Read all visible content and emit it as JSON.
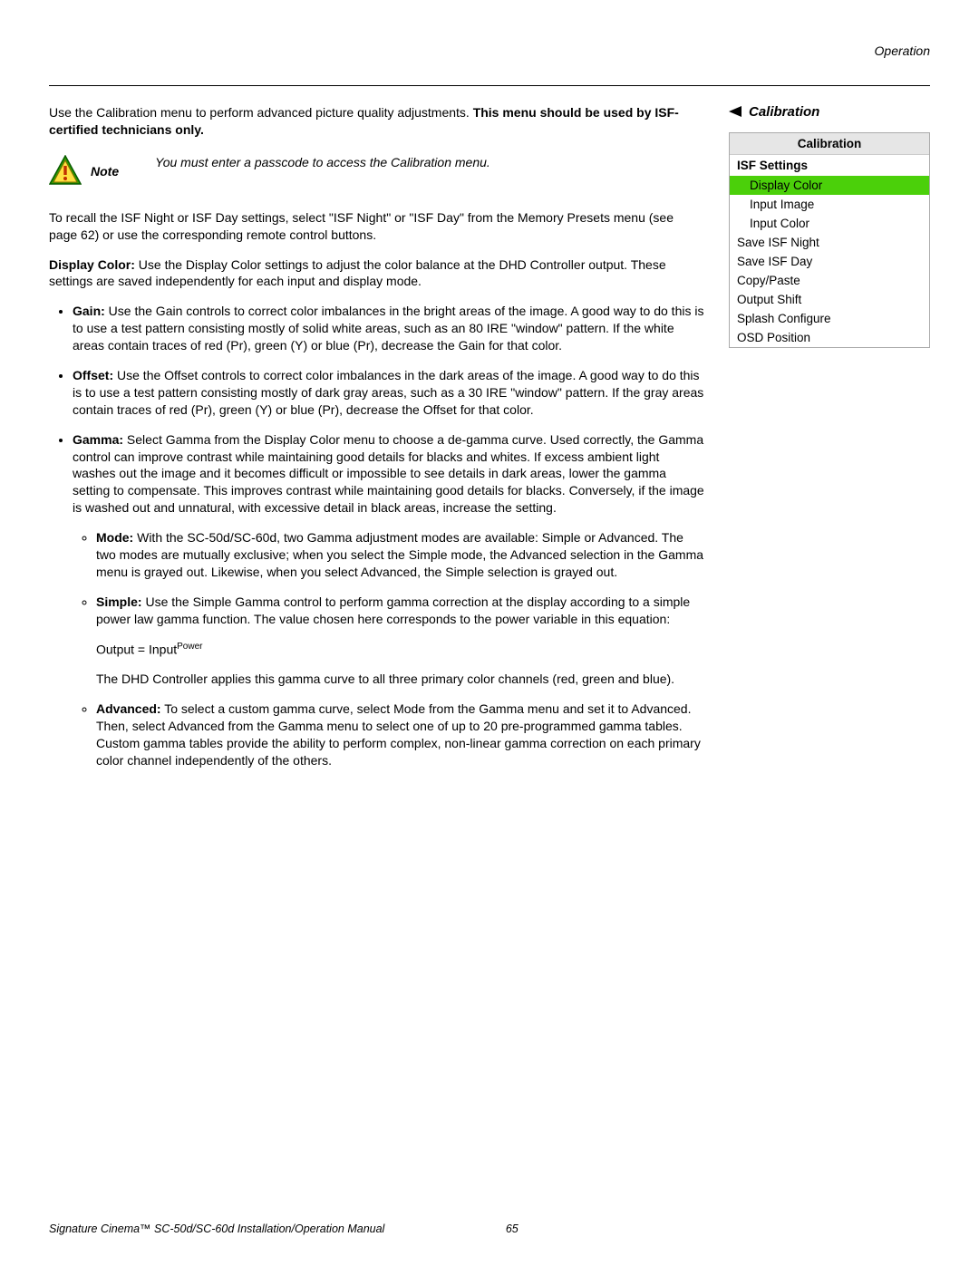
{
  "header": {
    "section": "Operation"
  },
  "intro": {
    "lead": "Use the Calibration menu to perform advanced picture quality adjustments. ",
    "bold": "This menu should be used by ISF-certified technicians only."
  },
  "note": {
    "label": "Note",
    "text": "You must enter a passcode to access the Calibration menu."
  },
  "recall": "To recall the ISF Night or ISF Day settings, select \"ISF Night\" or \"ISF Day\" from the Memory Presets menu (see page 62) or use the corresponding remote control buttons.",
  "displayColor": {
    "label": "Display Color:",
    "text": " Use the Display Color settings to adjust the color balance at the DHD Controller output. These settings are saved independently for each input and display mode."
  },
  "bullets": {
    "gain": {
      "label": "Gain:",
      "text": " Use the Gain controls to correct color imbalances in the bright areas of the image. A good way to do this is to use a test pattern consisting mostly of solid white areas, such as an 80 IRE \"window\" pattern. If the white areas contain traces of red (Pr), green (Y) or blue (Pr), decrease the Gain for that color."
    },
    "offset": {
      "label": "Offset:",
      "text": " Use the Offset controls to correct color imbalances in the dark areas of the image. A good way to do this is to use a test pattern consisting mostly of dark gray areas, such as a 30 IRE \"window\" pattern. If the gray areas contain traces of red (Pr), green (Y) or blue (Pr), decrease the Offset for that color."
    },
    "gamma": {
      "label": "Gamma:",
      "text": " Select Gamma from the Display Color menu to choose a de-gamma curve. Used correctly, the Gamma control can improve contrast while maintaining good details for blacks and whites. If excess ambient light washes out the image and it becomes difficult or impossible to see details in dark areas, lower the gamma setting to compensate. This improves contrast while maintaining good details for blacks. Conversely, if the image is washed out and unnatural, with excessive detail in black areas, increase the setting.",
      "mode": {
        "label": "Mode:",
        "text": " With the SC-50d/SC-60d, two Gamma adjustment modes are available: Simple or Advanced. The two modes are mutually exclusive; when you select the Simple mode, the Advanced selection in the Gamma menu is grayed out. Likewise, when you select Advanced, the Simple selection is grayed out."
      },
      "simple": {
        "label": "Simple:",
        "text": " Use the Simple Gamma control to perform gamma correction at the display according to a simple power law gamma function. The value chosen here corresponds to the power variable in this equation:",
        "eq_base": "Output = Input",
        "eq_sup": "Power",
        "after": "The DHD Controller applies this gamma curve to all three primary color channels (red, green and blue)."
      },
      "advanced": {
        "label": "Advanced:",
        "text": " To select a custom gamma curve, select Mode from the Gamma menu and set it to Advanced. Then, select Advanced from the Gamma menu to select one of up to 20 pre-programmed gamma tables. Custom gamma tables provide the ability to perform complex, non-linear gamma correction on each primary color channel independently of the others."
      }
    }
  },
  "side": {
    "title": "Calibration",
    "menu": {
      "header": "Calibration",
      "subheader": "ISF Settings",
      "items": [
        {
          "label": "Display Color",
          "indent": true,
          "selected": true
        },
        {
          "label": "Input Image",
          "indent": true,
          "selected": false
        },
        {
          "label": "Input Color",
          "indent": true,
          "selected": false
        },
        {
          "label": "Save ISF Night",
          "indent": false,
          "selected": false
        },
        {
          "label": "Save ISF Day",
          "indent": false,
          "selected": false
        },
        {
          "label": "Copy/Paste",
          "indent": false,
          "selected": false
        },
        {
          "label": "Output Shift",
          "indent": false,
          "selected": false
        },
        {
          "label": "Splash Configure",
          "indent": false,
          "selected": false
        },
        {
          "label": "OSD Position",
          "indent": false,
          "selected": false
        }
      ]
    }
  },
  "footer": {
    "text": "Signature Cinema™ SC-50d/SC-60d Installation/Operation Manual",
    "page": "65"
  },
  "colors": {
    "highlight": "#4bd00a",
    "menu_header_bg": "#e6e6e6",
    "rule": "#000000"
  }
}
